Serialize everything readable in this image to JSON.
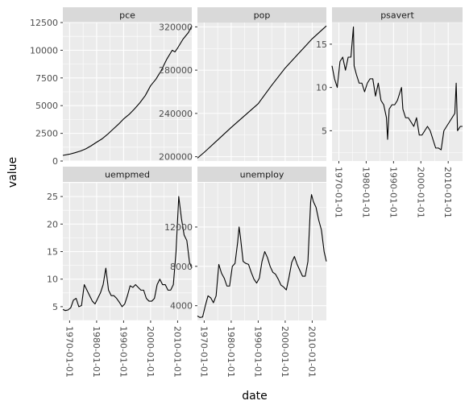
{
  "chart_data": {
    "type": "line",
    "facet_layout": "wrap",
    "xlabel": "date",
    "ylabel": "value",
    "x_tick_labels": [
      "1970-01-01",
      "1980-01-01",
      "1990-01-01",
      "2000-01-01",
      "2010-01-01"
    ],
    "xlim": [
      "1967-07-01",
      "2015-04-01"
    ],
    "grid": true,
    "series_color": "#000000",
    "panel_background": "#ebebeb",
    "strip_background": "#d9d9d9",
    "facets": [
      {
        "name": "pce",
        "ylim": [
          0,
          12500
        ],
        "y_ticks": [
          0,
          2500,
          5000,
          7500,
          10000,
          12500
        ],
        "y_tick_labels": [
          "0",
          "2500",
          "5000",
          "7500",
          "10000",
          "12500"
        ],
        "points": [
          [
            "1967-07-01",
            507
          ],
          [
            "1970-01-01",
            620
          ],
          [
            "1972-01-01",
            750
          ],
          [
            "1974-01-01",
            900
          ],
          [
            "1976-01-01",
            1100
          ],
          [
            "1978-01-01",
            1380
          ],
          [
            "1980-01-01",
            1700
          ],
          [
            "1982-01-01",
            2000
          ],
          [
            "1984-01-01",
            2400
          ],
          [
            "1986-01-01",
            2850
          ],
          [
            "1988-01-01",
            3300
          ],
          [
            "1990-01-01",
            3800
          ],
          [
            "1992-01-01",
            4200
          ],
          [
            "1994-01-01",
            4700
          ],
          [
            "1996-01-01",
            5250
          ],
          [
            "1998-01-01",
            5900
          ],
          [
            "2000-01-01",
            6800
          ],
          [
            "2002-01-01",
            7400
          ],
          [
            "2004-01-01",
            8200
          ],
          [
            "2006-01-01",
            9200
          ],
          [
            "2008-01-01",
            10000
          ],
          [
            "2009-01-01",
            9850
          ],
          [
            "2010-01-01",
            10200
          ],
          [
            "2012-01-01",
            11000
          ],
          [
            "2014-01-01",
            11600
          ],
          [
            "2015-04-01",
            12200
          ]
        ]
      },
      {
        "name": "pop",
        "ylim": [
          196000,
          324000
        ],
        "y_ticks": [
          200000,
          240000,
          280000,
          320000
        ],
        "y_tick_labels": [
          "200000",
          "240000",
          "280000",
          "320000"
        ],
        "points": [
          [
            "1967-07-01",
            198700
          ],
          [
            "1970-01-01",
            204000
          ],
          [
            "1975-01-01",
            215500
          ],
          [
            "1980-01-01",
            227000
          ],
          [
            "1985-01-01",
            238000
          ],
          [
            "1990-01-01",
            249000
          ],
          [
            "1995-01-01",
            266000
          ],
          [
            "2000-01-01",
            282000
          ],
          [
            "2005-01-01",
            295500
          ],
          [
            "2010-01-01",
            309000
          ],
          [
            "2015-04-01",
            320900
          ]
        ]
      },
      {
        "name": "psavert",
        "ylim": [
          1.5,
          17.5
        ],
        "y_ticks": [
          5,
          10,
          15
        ],
        "y_tick_labels": [
          "5",
          "10",
          "15"
        ],
        "points": [
          [
            "1967-07-01",
            12.5
          ],
          [
            "1968-06-01",
            11.0
          ],
          [
            "1969-06-01",
            10.0
          ],
          [
            "1970-06-01",
            13.0
          ],
          [
            "1971-06-01",
            13.5
          ],
          [
            "1972-06-01",
            12.0
          ],
          [
            "1973-06-01",
            13.5
          ],
          [
            "1974-06-01",
            13.5
          ],
          [
            "1975-05-01",
            17.0
          ],
          [
            "1975-08-01",
            12.5
          ],
          [
            "1976-06-01",
            11.5
          ],
          [
            "1977-06-01",
            10.5
          ],
          [
            "1978-06-01",
            10.5
          ],
          [
            "1979-06-01",
            9.5
          ],
          [
            "1980-06-01",
            10.5
          ],
          [
            "1981-06-01",
            11.0
          ],
          [
            "1982-06-01",
            11.0
          ],
          [
            "1983-06-01",
            9.0
          ],
          [
            "1984-06-01",
            10.5
          ],
          [
            "1985-06-01",
            8.5
          ],
          [
            "1986-06-01",
            8.0
          ],
          [
            "1987-06-01",
            6.5
          ],
          [
            "1987-11-01",
            4.0
          ],
          [
            "1988-06-01",
            7.5
          ],
          [
            "1989-06-01",
            8.0
          ],
          [
            "1990-06-01",
            8.0
          ],
          [
            "1991-06-01",
            8.5
          ],
          [
            "1992-06-01",
            9.5
          ],
          [
            "1992-12-01",
            10.0
          ],
          [
            "1993-06-01",
            7.5
          ],
          [
            "1994-06-01",
            6.5
          ],
          [
            "1995-06-01",
            6.5
          ],
          [
            "1996-06-01",
            6.0
          ],
          [
            "1997-06-01",
            5.5
          ],
          [
            "1998-06-01",
            6.5
          ],
          [
            "1999-06-01",
            4.5
          ],
          [
            "2000-06-01",
            4.5
          ],
          [
            "2001-06-01",
            5.0
          ],
          [
            "2002-06-01",
            5.5
          ],
          [
            "2003-06-01",
            5.0
          ],
          [
            "2004-06-01",
            4.0
          ],
          [
            "2005-06-01",
            3.0
          ],
          [
            "2006-06-01",
            3.0
          ],
          [
            "2007-06-01",
            2.8
          ],
          [
            "2008-06-01",
            5.0
          ],
          [
            "2009-06-01",
            5.5
          ],
          [
            "2010-06-01",
            6.0
          ],
          [
            "2011-06-01",
            6.5
          ],
          [
            "2012-06-01",
            7.0
          ],
          [
            "2012-12-01",
            10.5
          ],
          [
            "2013-06-01",
            5.0
          ],
          [
            "2014-06-01",
            5.5
          ],
          [
            "2015-04-01",
            5.5
          ]
        ]
      },
      {
        "name": "uempmed",
        "ylim": [
          2.5,
          27.5
        ],
        "y_ticks": [
          5,
          10,
          15,
          20,
          25
        ],
        "y_tick_labels": [
          "5",
          "10",
          "15",
          "20",
          "25"
        ],
        "points": [
          [
            "1967-07-01",
            4.5
          ],
          [
            "1968-06-01",
            4.3
          ],
          [
            "1969-06-01",
            4.4
          ],
          [
            "1970-06-01",
            4.8
          ],
          [
            "1971-06-01",
            6.2
          ],
          [
            "1972-06-01",
            6.5
          ],
          [
            "1973-06-01",
            5.0
          ],
          [
            "1974-06-01",
            5.2
          ],
          [
            "1975-06-01",
            9.0
          ],
          [
            "1976-06-01",
            8.0
          ],
          [
            "1977-06-01",
            7.0
          ],
          [
            "1978-06-01",
            6.0
          ],
          [
            "1979-06-01",
            5.5
          ],
          [
            "1980-06-01",
            6.5
          ],
          [
            "1981-06-01",
            7.5
          ],
          [
            "1982-06-01",
            9.0
          ],
          [
            "1983-06-01",
            12.0
          ],
          [
            "1984-06-01",
            8.0
          ],
          [
            "1985-06-01",
            7.0
          ],
          [
            "1986-06-01",
            7.0
          ],
          [
            "1987-06-01",
            6.5
          ],
          [
            "1988-06-01",
            5.8
          ],
          [
            "1989-06-01",
            5.0
          ],
          [
            "1990-06-01",
            5.5
          ],
          [
            "1991-06-01",
            7.0
          ],
          [
            "1992-06-01",
            8.8
          ],
          [
            "1993-06-01",
            8.5
          ],
          [
            "1994-06-01",
            9.0
          ],
          [
            "1995-06-01",
            8.5
          ],
          [
            "1996-06-01",
            8.0
          ],
          [
            "1997-06-01",
            8.0
          ],
          [
            "1998-06-01",
            6.5
          ],
          [
            "1999-06-01",
            6.0
          ],
          [
            "2000-06-01",
            6.0
          ],
          [
            "2001-06-01",
            6.5
          ],
          [
            "2002-06-01",
            9.0
          ],
          [
            "2003-06-01",
            10.0
          ],
          [
            "2004-06-01",
            9.0
          ],
          [
            "2005-06-01",
            9.0
          ],
          [
            "2006-06-01",
            8.0
          ],
          [
            "2007-06-01",
            8.0
          ],
          [
            "2008-06-01",
            9.0
          ],
          [
            "2009-06-01",
            15.0
          ],
          [
            "2010-06-01",
            25.0
          ],
          [
            "2011-06-01",
            21.0
          ],
          [
            "2012-06-01",
            18.0
          ],
          [
            "2013-06-01",
            17.0
          ],
          [
            "2014-06-01",
            13.0
          ],
          [
            "2015-04-01",
            12.0
          ]
        ]
      },
      {
        "name": "unemploy",
        "ylim": [
          2500,
          16500
        ],
        "y_ticks": [
          4000,
          8000,
          12000
        ],
        "y_tick_labels": [
          "4000",
          "8000",
          "12000"
        ],
        "points": [
          [
            "1967-07-01",
            2950
          ],
          [
            "1968-06-01",
            2800
          ],
          [
            "1969-06-01",
            2850
          ],
          [
            "1970-06-01",
            4000
          ],
          [
            "1971-06-01",
            5000
          ],
          [
            "1972-06-01",
            4800
          ],
          [
            "1973-06-01",
            4300
          ],
          [
            "1974-06-01",
            5000
          ],
          [
            "1975-06-01",
            8200
          ],
          [
            "1976-06-01",
            7300
          ],
          [
            "1977-06-01",
            6800
          ],
          [
            "1978-06-01",
            6000
          ],
          [
            "1979-06-01",
            6000
          ],
          [
            "1980-06-01",
            8000
          ],
          [
            "1981-06-01",
            8300
          ],
          [
            "1982-06-01",
            10500
          ],
          [
            "1982-12-01",
            12000
          ],
          [
            "1983-06-01",
            11000
          ],
          [
            "1984-06-01",
            8500
          ],
          [
            "1985-06-01",
            8300
          ],
          [
            "1986-06-01",
            8200
          ],
          [
            "1987-06-01",
            7400
          ],
          [
            "1988-06-01",
            6700
          ],
          [
            "1989-06-01",
            6300
          ],
          [
            "1990-06-01",
            6800
          ],
          [
            "1991-06-01",
            8500
          ],
          [
            "1992-06-01",
            9500
          ],
          [
            "1993-06-01",
            8900
          ],
          [
            "1994-06-01",
            8000
          ],
          [
            "1995-06-01",
            7400
          ],
          [
            "1996-06-01",
            7200
          ],
          [
            "1997-06-01",
            6700
          ],
          [
            "1998-06-01",
            6100
          ],
          [
            "1999-06-01",
            5900
          ],
          [
            "2000-06-01",
            5600
          ],
          [
            "2001-06-01",
            6900
          ],
          [
            "2002-06-01",
            8400
          ],
          [
            "2003-06-01",
            9000
          ],
          [
            "2004-06-01",
            8200
          ],
          [
            "2005-06-01",
            7600
          ],
          [
            "2006-06-01",
            7000
          ],
          [
            "2007-06-01",
            7000
          ],
          [
            "2008-06-01",
            8500
          ],
          [
            "2009-06-01",
            14500
          ],
          [
            "2009-10-01",
            15300
          ],
          [
            "2010-06-01",
            14600
          ],
          [
            "2011-06-01",
            14000
          ],
          [
            "2012-06-01",
            12700
          ],
          [
            "2013-06-01",
            11700
          ],
          [
            "2014-06-01",
            9500
          ],
          [
            "2015-04-01",
            8500
          ]
        ]
      }
    ]
  }
}
